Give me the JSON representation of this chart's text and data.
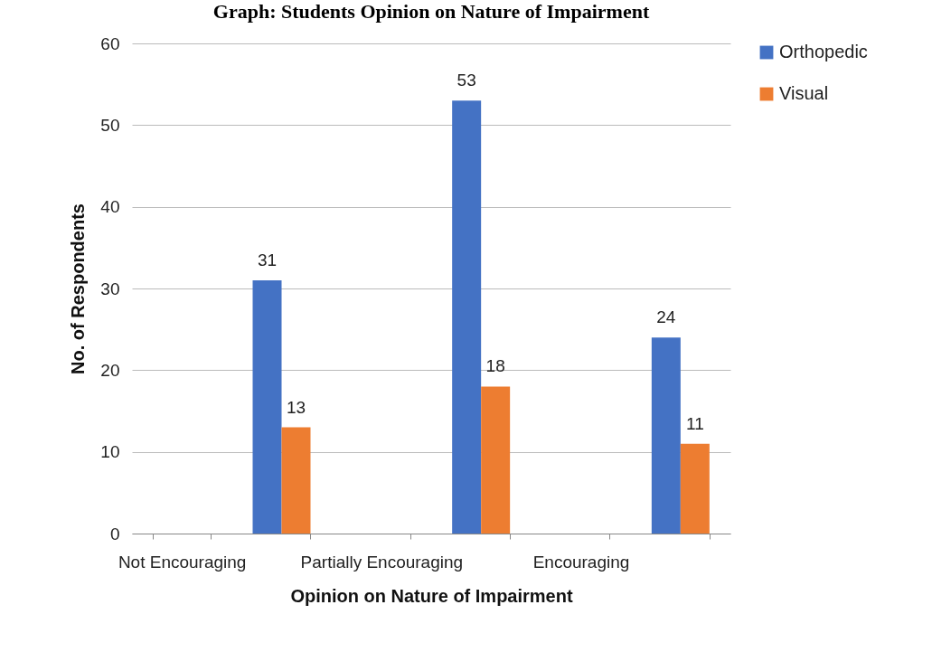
{
  "chart_data": {
    "type": "bar",
    "title": "Graph: Students Opinion on Nature of Impairment",
    "xlabel": "Opinion on Nature of Impairment",
    "ylabel": "No. of Respondents",
    "categories": [
      "Not Encouraging",
      null,
      "Partially Encouraging",
      null,
      "Encouraging",
      null
    ],
    "series": [
      {
        "name": "Orthopedic",
        "color": "#4472c4",
        "values": [
          null,
          31,
          null,
          53,
          null,
          24
        ]
      },
      {
        "name": "Visual",
        "color": "#ed7d31",
        "values": [
          null,
          13,
          null,
          18,
          null,
          11
        ]
      }
    ],
    "ylim": [
      0,
      60
    ],
    "yticks": [
      0,
      10,
      20,
      30,
      40,
      50,
      60
    ],
    "grid": "y",
    "legend": "right",
    "data_labels": true
  }
}
